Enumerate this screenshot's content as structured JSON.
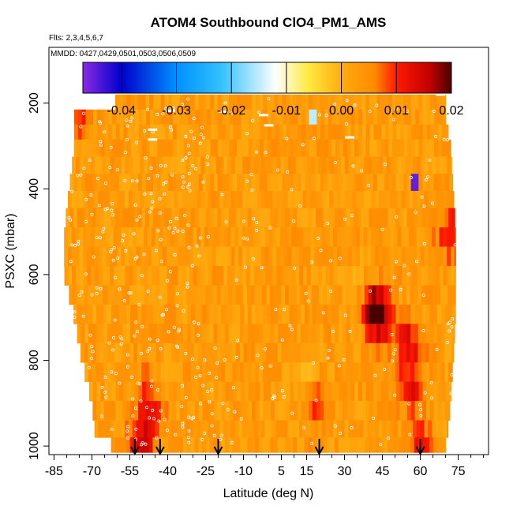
{
  "chart_data": {
    "type": "heatmap",
    "title": "ATOM4 Southbound ClO4_PM1_AMS",
    "flights_note": "Flts: 2,3,4,5,6,7",
    "dates_note": "MMDD: 0427,0429,0501,0503,0506,0509",
    "xlabel": "Latitude (deg N)",
    "ylabel": "PSXC (mbar)",
    "xlim": [
      -87,
      87
    ],
    "ylim": [
      1020,
      70
    ],
    "x_ticks": [
      -85,
      -70,
      -55,
      -40,
      -25,
      -10,
      5,
      15,
      30,
      45,
      60,
      75
    ],
    "x_minor_ticks": [
      -80,
      -75,
      -65,
      -60,
      -50,
      -45,
      -35,
      -30,
      -20,
      -15,
      -5,
      0,
      10,
      20,
      25,
      35,
      40,
      50,
      55,
      65,
      70,
      80,
      85
    ],
    "y_ticks": [
      200,
      400,
      600,
      800,
      1000
    ],
    "colorbar": {
      "range": [
        -0.047,
        0.02
      ],
      "ticks": [
        -0.04,
        -0.03,
        -0.02,
        -0.01,
        0.0,
        0.01,
        0.02
      ],
      "tick_labels": [
        "-0.04",
        "-0.03",
        "-0.02",
        "-0.01",
        "0.00",
        "0.01",
        "0.02"
      ],
      "stops": [
        {
          "v": -0.047,
          "c": "#8a2be2"
        },
        {
          "v": -0.04,
          "c": "#0000cd"
        },
        {
          "v": -0.03,
          "c": "#0090ff"
        },
        {
          "v": -0.022,
          "c": "#30c0ff"
        },
        {
          "v": -0.012,
          "c": "#fcffff"
        },
        {
          "v": -0.006,
          "c": "#ffea40"
        },
        {
          "v": 0.0,
          "c": "#ffac10"
        },
        {
          "v": 0.006,
          "c": "#ff8a00"
        },
        {
          "v": 0.01,
          "c": "#ff1a00"
        },
        {
          "v": 0.016,
          "c": "#c40000"
        },
        {
          "v": 0.02,
          "c": "#4a0000"
        }
      ]
    },
    "latitude_bounds": [
      {
        "p": 180,
        "west": -52,
        "east": 70
      },
      {
        "p": 230,
        "west": -77,
        "east": 70
      },
      {
        "p": 300,
        "west": -77,
        "east": 72
      },
      {
        "p": 400,
        "west": -79,
        "east": 73
      },
      {
        "p": 500,
        "west": -81,
        "east": 74
      },
      {
        "p": 600,
        "west": -81,
        "east": 74
      },
      {
        "p": 700,
        "west": -77,
        "east": 74
      },
      {
        "p": 800,
        "west": -74,
        "east": 73
      },
      {
        "p": 900,
        "west": -70,
        "east": 72
      },
      {
        "p": 960,
        "west": -69,
        "east": 71
      },
      {
        "p": 1000,
        "west": -62,
        "east": 70
      }
    ],
    "pressure_levels": [
      180,
      215,
      250,
      285,
      325,
      365,
      405,
      445,
      490,
      535,
      580,
      625,
      670,
      715,
      760,
      805,
      850,
      895,
      940,
      980,
      1015
    ],
    "background_value": 0.003,
    "hotspots": [
      {
        "lat": 44,
        "p": 700,
        "value": 0.013
      },
      {
        "lat": 42,
        "p": 680,
        "value": 0.016
      },
      {
        "lat": 55,
        "p": 760,
        "value": 0.014
      },
      {
        "lat": 56,
        "p": 860,
        "value": 0.012
      },
      {
        "lat": -48,
        "p": 900,
        "value": 0.013
      },
      {
        "lat": -50,
        "p": 1000,
        "value": 0.015
      },
      {
        "lat": 18,
        "p": 900,
        "value": 0.011
      },
      {
        "lat": 60,
        "p": 1000,
        "value": 0.011
      },
      {
        "lat": 72,
        "p": 500,
        "value": 0.012
      },
      {
        "lat": -75,
        "p": 230,
        "value": 0.01
      },
      {
        "lat": 14,
        "p": 840,
        "value": -0.002
      },
      {
        "lat": 35,
        "p": 620,
        "value": 0.0
      }
    ],
    "anomalies": [
      {
        "lat": 58,
        "p": 390,
        "value": -0.045
      },
      {
        "lat": 18,
        "p": 230,
        "value": -0.015
      }
    ],
    "missing_data_lines": [
      {
        "p": 180,
        "lat": 68
      },
      {
        "p": 218,
        "lat": -39
      },
      {
        "p": 220,
        "lat": -18
      },
      {
        "p": 228,
        "lat": -2
      },
      {
        "p": 252,
        "lat": 0
      },
      {
        "p": 262,
        "lat": -46
      },
      {
        "p": 280,
        "lat": 32
      },
      {
        "p": 285,
        "lat": -46
      }
    ],
    "flight_path_arrows_lat": [
      -53,
      -43,
      -20,
      20,
      60
    ]
  }
}
